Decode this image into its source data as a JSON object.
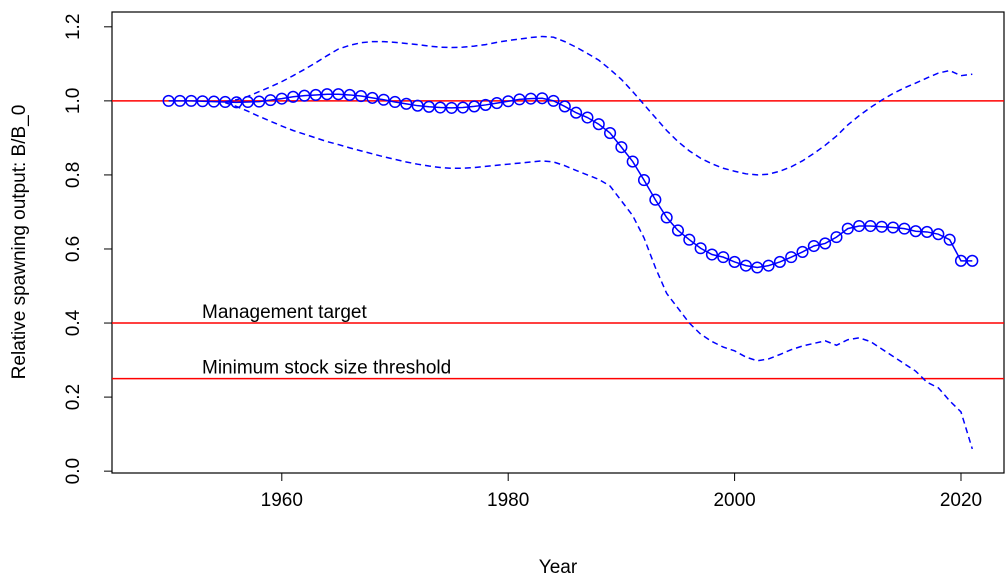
{
  "chart_data": {
    "type": "line",
    "x_label": "Year",
    "y_label": "Relative spawning output: B/B_0",
    "x": [
      1950,
      1951,
      1952,
      1953,
      1954,
      1955,
      1956,
      1957,
      1958,
      1959,
      1960,
      1961,
      1962,
      1963,
      1964,
      1965,
      1966,
      1967,
      1968,
      1969,
      1970,
      1971,
      1972,
      1973,
      1974,
      1975,
      1976,
      1977,
      1978,
      1979,
      1980,
      1981,
      1982,
      1983,
      1984,
      1985,
      1986,
      1987,
      1988,
      1989,
      1990,
      1991,
      1992,
      1993,
      1994,
      1995,
      1996,
      1997,
      1998,
      1999,
      2000,
      2001,
      2002,
      2003,
      2004,
      2005,
      2006,
      2007,
      2008,
      2009,
      2010,
      2011,
      2012,
      2013,
      2014,
      2015,
      2016,
      2017,
      2018,
      2019,
      2020,
      2021
    ],
    "series": [
      {
        "color": "#0000ff",
        "markers": true,
        "dashed": false,
        "values": [
          1.0,
          1.0,
          1.0,
          0.999,
          0.998,
          0.997,
          0.996,
          0.997,
          0.998,
          1.002,
          1.006,
          1.011,
          1.014,
          1.016,
          1.018,
          1.018,
          1.016,
          1.013,
          1.008,
          1.003,
          0.997,
          0.992,
          0.987,
          0.984,
          0.982,
          0.981,
          0.982,
          0.985,
          0.989,
          0.994,
          0.999,
          1.004,
          1.006,
          1.007,
          1.0,
          0.985,
          0.968,
          0.955,
          0.937,
          0.913,
          0.875,
          0.836,
          0.786,
          0.733,
          0.685,
          0.65,
          0.625,
          0.602,
          0.585,
          0.578,
          0.565,
          0.555,
          0.55,
          0.555,
          0.565,
          0.578,
          0.592,
          0.608,
          0.615,
          0.632,
          0.655,
          0.662,
          0.662,
          0.66,
          0.658,
          0.655,
          0.648,
          0.646,
          0.64,
          0.625,
          0.568,
          0.568
        ]
      },
      {
        "color": "#0000ff",
        "markers": false,
        "dashed": true,
        "values": [
          null,
          null,
          null,
          null,
          null,
          0.998,
          1.003,
          1.012,
          1.025,
          1.038,
          1.052,
          1.068,
          1.085,
          1.103,
          1.122,
          1.14,
          1.15,
          1.157,
          1.16,
          1.16,
          1.158,
          1.155,
          1.152,
          1.148,
          1.145,
          1.144,
          1.145,
          1.148,
          1.152,
          1.158,
          1.163,
          1.167,
          1.171,
          1.174,
          1.172,
          1.16,
          1.145,
          1.128,
          1.11,
          1.085,
          1.058,
          1.025,
          0.99,
          0.955,
          0.92,
          0.89,
          0.865,
          0.845,
          0.83,
          0.818,
          0.81,
          0.803,
          0.8,
          0.802,
          0.81,
          0.822,
          0.838,
          0.858,
          0.88,
          0.905,
          0.935,
          0.96,
          0.982,
          1.002,
          1.02,
          1.035,
          1.048,
          1.062,
          1.075,
          1.082,
          1.068,
          1.072
        ]
      },
      {
        "color": "#0000ff",
        "markers": false,
        "dashed": true,
        "values": [
          null,
          null,
          null,
          null,
          null,
          0.995,
          0.985,
          0.972,
          0.958,
          0.945,
          0.932,
          0.92,
          0.91,
          0.9,
          0.89,
          0.882,
          0.873,
          0.865,
          0.857,
          0.849,
          0.842,
          0.835,
          0.829,
          0.824,
          0.82,
          0.818,
          0.818,
          0.82,
          0.823,
          0.826,
          0.829,
          0.832,
          0.835,
          0.838,
          0.835,
          0.825,
          0.812,
          0.8,
          0.788,
          0.77,
          0.73,
          0.69,
          0.63,
          0.55,
          0.48,
          0.44,
          0.4,
          0.37,
          0.35,
          0.335,
          0.325,
          0.308,
          0.298,
          0.303,
          0.315,
          0.328,
          0.338,
          0.345,
          0.352,
          0.34,
          0.355,
          0.36,
          0.35,
          0.33,
          0.31,
          0.29,
          0.27,
          0.24,
          0.225,
          0.19,
          0.16,
          0.06
        ]
      }
    ],
    "reference_lines": [
      {
        "value": 1.0,
        "color": "#ff0000"
      },
      {
        "value": 0.4,
        "color": "#ff0000",
        "label": "Management target"
      },
      {
        "value": 0.25,
        "color": "#ff0000",
        "label": "Minimum stock size threshold"
      }
    ],
    "xlim": [
      1945,
      2023.8
    ],
    "xticks": [
      1960,
      1980,
      2000,
      2020
    ],
    "ylim": [
      -0.005,
      1.24
    ],
    "yticks": [
      {
        "value": 0,
        "label": "0.0"
      },
      0.2,
      0.4,
      0.6,
      0.8,
      {
        "value": 1,
        "label": "1.0"
      },
      1.2
    ]
  }
}
